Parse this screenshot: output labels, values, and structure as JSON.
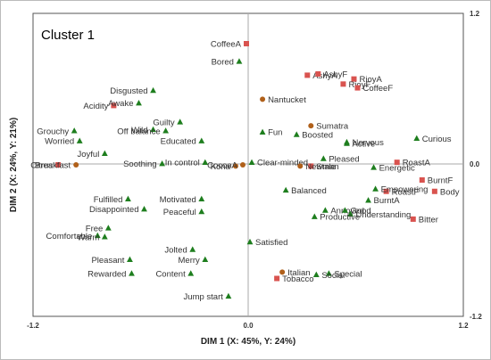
{
  "chart_data": {
    "type": "scatter",
    "title": "Cluster 1",
    "xlabel": "DIM 1 (X: 45%, Y: 24%)",
    "ylabel": "DIM 2 (X: 24%, Y: 21%)",
    "xlim": [
      -1.2,
      1.2
    ],
    "ylim": [
      -1.2,
      1.2
    ],
    "x_tick_labels": [
      "-1.2",
      "0.0",
      "1.2"
    ],
    "y_tick_labels": [
      "1.2",
      "0.0",
      "-1.2"
    ],
    "grid": false,
    "colors": {
      "square": "#d9534f",
      "triangle": "#1e7e1e",
      "circle": "#b0601a",
      "axis": "#aaaaaa"
    },
    "series": [
      {
        "marker": "square",
        "points": [
          {
            "label": "CoffeeA",
            "x": -0.01,
            "y": 0.96
          },
          {
            "label": "AshyA",
            "x": 0.33,
            "y": 0.71
          },
          {
            "label": "AshyF",
            "x": 0.39,
            "y": 0.72
          },
          {
            "label": "RioyA",
            "x": 0.59,
            "y": 0.68
          },
          {
            "label": "RioyF",
            "x": 0.53,
            "y": 0.64
          },
          {
            "label": "CoffeeF",
            "x": 0.61,
            "y": 0.61
          },
          {
            "label": "Acidity",
            "x": -0.75,
            "y": 0.47
          },
          {
            "label": "Citrus",
            "x": -1.06,
            "y": 0.0
          },
          {
            "label": "Stale",
            "x": 0.35,
            "y": -0.01
          },
          {
            "label": "RoastA",
            "x": 0.83,
            "y": 0.02
          },
          {
            "label": "BurntF",
            "x": 0.97,
            "y": -0.12
          },
          {
            "label": "Body",
            "x": 1.04,
            "y": -0.21
          },
          {
            "label": "RoastF",
            "x": 0.77,
            "y": -0.21
          },
          {
            "label": "Bitter",
            "x": 0.92,
            "y": -0.43
          },
          {
            "label": "Tobacco",
            "x": 0.16,
            "y": -0.9
          }
        ]
      },
      {
        "marker": "triangle",
        "points": [
          {
            "label": "Bored",
            "x": -0.05,
            "y": 0.82
          },
          {
            "label": "Disgusted",
            "x": -0.53,
            "y": 0.59
          },
          {
            "label": "Awake",
            "x": -0.61,
            "y": 0.49
          },
          {
            "label": "Guilty",
            "x": -0.38,
            "y": 0.34
          },
          {
            "label": "Wild",
            "x": -0.53,
            "y": 0.28
          },
          {
            "label": "Off balance",
            "x": -0.46,
            "y": 0.27
          },
          {
            "label": "Educated",
            "x": -0.26,
            "y": 0.19
          },
          {
            "label": "Fun",
            "x": 0.08,
            "y": 0.26
          },
          {
            "label": "Grouchy",
            "x": -0.97,
            "y": 0.27
          },
          {
            "label": "Worried",
            "x": -0.94,
            "y": 0.19
          },
          {
            "label": "Joyful",
            "x": -0.8,
            "y": 0.09
          },
          {
            "label": "Soothing",
            "x": -0.48,
            "y": 0.01
          },
          {
            "label": "In control",
            "x": -0.24,
            "y": 0.02
          },
          {
            "label": "Clear-minded",
            "x": 0.02,
            "y": 0.02
          },
          {
            "label": "Boosted",
            "x": 0.27,
            "y": 0.24
          },
          {
            "label": "Nervous",
            "x": 0.55,
            "y": 0.18
          },
          {
            "label": "Active",
            "x": 0.55,
            "y": 0.17
          },
          {
            "label": "Curious",
            "x": 0.94,
            "y": 0.21
          },
          {
            "label": "Pleased",
            "x": 0.42,
            "y": 0.05
          },
          {
            "label": "Energetic",
            "x": 0.7,
            "y": -0.02
          },
          {
            "label": "Balanced",
            "x": 0.21,
            "y": -0.2
          },
          {
            "label": "Empowering",
            "x": 0.71,
            "y": -0.19
          },
          {
            "label": "Fulfilled",
            "x": -0.67,
            "y": -0.27
          },
          {
            "label": "Motivated",
            "x": -0.26,
            "y": -0.27
          },
          {
            "label": "Disappointed",
            "x": -0.58,
            "y": -0.35
          },
          {
            "label": "Peaceful",
            "x": -0.26,
            "y": -0.37
          },
          {
            "label": "Annoyed",
            "x": 0.43,
            "y": -0.36
          },
          {
            "label": "Good",
            "x": 0.54,
            "y": -0.36
          },
          {
            "label": "BurntA",
            "x": 0.67,
            "y": -0.28
          },
          {
            "label": "Understanding",
            "x": 0.57,
            "y": -0.39
          },
          {
            "label": "Productive",
            "x": 0.37,
            "y": -0.41
          },
          {
            "label": "Free",
            "x": -0.78,
            "y": -0.5
          },
          {
            "label": "Comfortable",
            "x": -0.84,
            "y": -0.56
          },
          {
            "label": "Warm",
            "x": -0.8,
            "y": -0.57
          },
          {
            "label": "Satisfied",
            "x": 0.01,
            "y": -0.61
          },
          {
            "label": "Jolted",
            "x": -0.31,
            "y": -0.67
          },
          {
            "label": "Pleasant",
            "x": -0.66,
            "y": -0.75
          },
          {
            "label": "Merry",
            "x": -0.24,
            "y": -0.75
          },
          {
            "label": "Rewarded",
            "x": -0.65,
            "y": -0.86
          },
          {
            "label": "Content",
            "x": -0.32,
            "y": -0.86
          },
          {
            "label": "Special",
            "x": 0.45,
            "y": -0.86
          },
          {
            "label": "Social",
            "x": 0.38,
            "y": -0.87
          },
          {
            "label": "Jump start",
            "x": -0.11,
            "y": -1.04
          }
        ]
      },
      {
        "marker": "circle",
        "points": [
          {
            "label": "Nantucket",
            "x": 0.08,
            "y": 0.52
          },
          {
            "label": "Sumatra",
            "x": 0.35,
            "y": 0.31
          },
          {
            "label": "Breakfast",
            "x": -0.96,
            "y": 0.0
          },
          {
            "label": "Kona",
            "x": -0.07,
            "y": -0.01
          },
          {
            "label": "CocoaA",
            "x": -0.03,
            "y": 0.0
          },
          {
            "label": "Newman",
            "x": 0.29,
            "y": -0.01
          },
          {
            "label": "Italian",
            "x": 0.19,
            "y": -0.85
          }
        ]
      }
    ]
  }
}
